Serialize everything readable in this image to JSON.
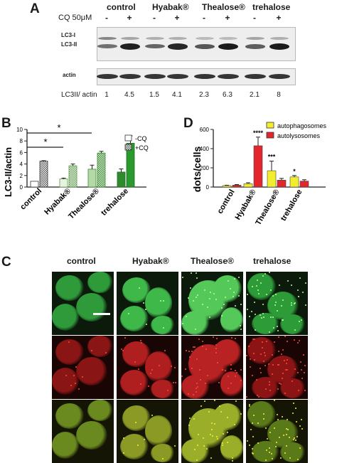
{
  "panelA": {
    "letter": "A",
    "groups": [
      "control",
      "Hyabak®",
      "Thealose®",
      "trehalose"
    ],
    "cq_label": "CQ 50μM",
    "cq_signs": [
      "-",
      "+",
      "-",
      "+",
      "-",
      "+",
      "-",
      "+"
    ],
    "lc3_i_label": "LC3-I",
    "lc3_ii_label": "LC3-II",
    "actin_label": "actin",
    "ratio_label": "LC3II/ actin",
    "ratios": [
      "1",
      "4.5",
      "1.5",
      "4.1",
      "2.3",
      "6.3",
      "2.1",
      "8"
    ],
    "lc3ii_intensity": [
      0.35,
      0.95,
      0.45,
      0.9,
      0.55,
      1.0,
      0.5,
      1.0
    ],
    "lc3i_intensity": [
      0.5,
      0.35,
      0.3,
      0.3,
      0.25,
      0.25,
      0.35,
      0.3
    ]
  },
  "panelB": {
    "letter": "B",
    "ylabel": "LC3-II/actin",
    "legend_neg": "-CQ",
    "legend_pos": "+CQ",
    "star": "*"
  },
  "panelD": {
    "letter": "D",
    "ylabel": "dots/cells",
    "legend_auto": "autophagosomes",
    "legend_lyso": "autolysosomes",
    "colors": {
      "auto": "#f2ee2e",
      "lyso": "#e2262b"
    }
  },
  "panelC": {
    "letter": "C",
    "headers": [
      "control",
      "Hyabak®",
      "Thealose®",
      "trehalose"
    ]
  },
  "chart_data": [
    {
      "type": "bar",
      "categories": [
        "control",
        "Hyabak®",
        "Thealose®",
        "trehalose"
      ],
      "series": [
        {
          "name": "-CQ",
          "values": [
            1.0,
            1.4,
            3.1,
            2.6
          ],
          "errors": [
            0.0,
            0.15,
            0.7,
            0.55
          ]
        },
        {
          "name": "+CQ",
          "values": [
            4.5,
            3.7,
            5.9,
            7.6
          ],
          "errors": [
            0.08,
            0.3,
            0.3,
            1.3
          ]
        }
      ],
      "title": "",
      "xlabel": "",
      "ylabel": "LC3-II/actin",
      "ylim": [
        0,
        10
      ],
      "yticks": [
        0,
        2,
        4,
        6,
        8,
        10
      ],
      "significance": [
        "*",
        "*"
      ],
      "legend": "top-right"
    },
    {
      "type": "bar",
      "categories": [
        "control",
        "Hyabak®",
        "Thealose®",
        "trehalose"
      ],
      "series": [
        {
          "name": "autophagosomes",
          "values": [
            15,
            35,
            170,
            105
          ],
          "errors": [
            4,
            10,
            100,
            15
          ],
          "sig": [
            "",
            "",
            "***",
            "*"
          ]
        },
        {
          "name": "autolysosomes",
          "values": [
            20,
            430,
            72,
            62
          ],
          "errors": [
            6,
            90,
            18,
            14
          ],
          "sig": [
            "",
            "****",
            "",
            ""
          ]
        }
      ],
      "title": "",
      "xlabel": "",
      "ylabel": "dots/cells",
      "ylim": [
        0,
        600
      ],
      "yticks": [
        0,
        200,
        400,
        600
      ],
      "legend": "top-right"
    }
  ]
}
